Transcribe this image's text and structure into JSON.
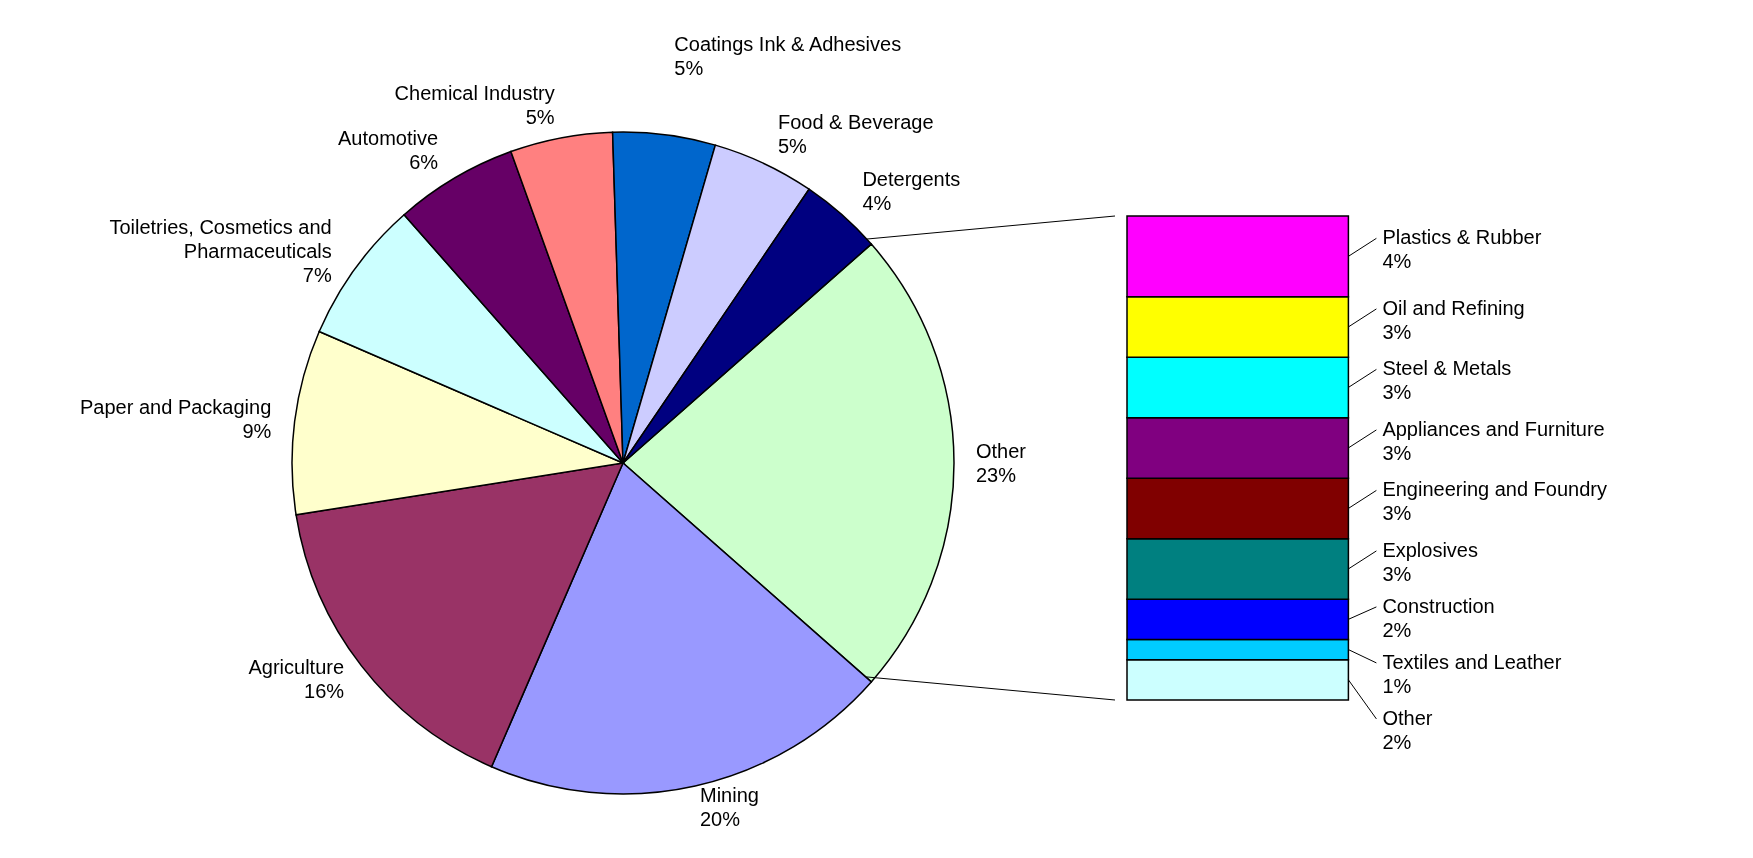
{
  "chart_data": [
    {
      "type": "pie",
      "categories": [
        "Other",
        "Mining",
        "Agriculture",
        "Paper and Packaging",
        "Toiletries, Cosmetics and Pharmaceuticals",
        "Automotive",
        "Chemical Industry",
        "Coatings Ink & Adhesives",
        "Food & Beverage",
        "Detergents"
      ],
      "values": [
        23,
        20,
        16,
        9,
        7,
        6,
        5,
        5,
        5,
        4
      ],
      "colors": [
        "#ccffcc",
        "#9999ff",
        "#993366",
        "#ffffcc",
        "#ccffff",
        "#660066",
        "#ff8080",
        "#0066cc",
        "#ccccff",
        "#000080"
      ],
      "value_labels": [
        "23%",
        "20%",
        "16%",
        "9%",
        "7%",
        "6%",
        "5%",
        "5%",
        "5%",
        "4%"
      ]
    },
    {
      "type": "bar",
      "stacked": true,
      "categories": [
        null
      ],
      "series": [
        {
          "name": "Other",
          "color": "#ccffff",
          "values": [
            2
          ],
          "value_labels": [
            "2%"
          ]
        },
        {
          "name": "Textiles and Leather",
          "color": "#00ccff",
          "values": [
            1
          ],
          "value_labels": [
            "1%"
          ]
        },
        {
          "name": "Construction",
          "color": "#0000ff",
          "values": [
            2
          ],
          "value_labels": [
            "2%"
          ]
        },
        {
          "name": "Explosives",
          "color": "#008080",
          "values": [
            3
          ],
          "value_labels": [
            "3%"
          ]
        },
        {
          "name": "Engineering and Foundry",
          "color": "#800000",
          "values": [
            3
          ],
          "value_labels": [
            "3%"
          ]
        },
        {
          "name": "Appliances and Furniture",
          "color": "#800080",
          "values": [
            3
          ],
          "value_labels": [
            "3%"
          ]
        },
        {
          "name": "Steel & Metals",
          "color": "#00ffff",
          "values": [
            3
          ],
          "value_labels": [
            "3%"
          ]
        },
        {
          "name": "Oil and Refining",
          "color": "#ffff00",
          "values": [
            3
          ],
          "value_labels": [
            "3%"
          ]
        },
        {
          "name": "Plastics & Rubber",
          "color": "#ff00ff",
          "values": [
            4
          ],
          "value_labels": [
            "4%"
          ]
        }
      ]
    }
  ]
}
